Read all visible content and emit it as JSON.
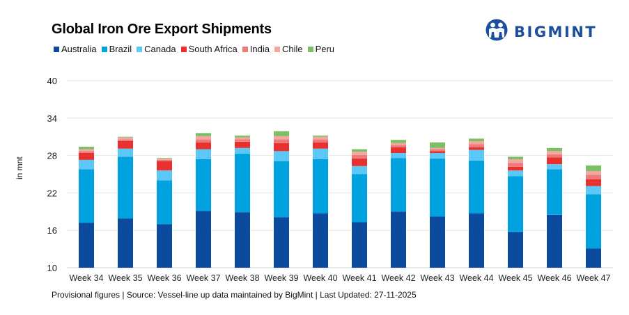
{
  "header": {
    "title": "Global Iron Ore Export Shipments",
    "logo_text": "BIGMINT",
    "logo_icon": "bigmint-people-icon",
    "brand_color": "#1c4f9c"
  },
  "footer": {
    "note": "Provisional figures | Source: Vessel-line up data maintained by BigMint | Last Updated: 27-11-2025"
  },
  "chart_data": {
    "type": "bar",
    "stacked": true,
    "title": "Global Iron Ore Export Shipments",
    "xlabel": "",
    "ylabel": "in mnt",
    "ylim": [
      10,
      40
    ],
    "yticks": [
      10,
      16,
      22,
      28,
      34,
      40
    ],
    "grid": true,
    "legend_position": "top-left",
    "categories": [
      "Week 34",
      "Week 35",
      "Week 36",
      "Week 37",
      "Week 38",
      "Week 39",
      "Week 40",
      "Week 41",
      "Week 42",
      "Week 43",
      "Week 44",
      "Week 45",
      "Week 46",
      "Week 47"
    ],
    "series": [
      {
        "name": "Australia",
        "color": "#0b4a9c",
        "values": [
          17.2,
          17.9,
          17.0,
          19.1,
          18.9,
          18.1,
          18.7,
          17.3,
          19.0,
          18.2,
          18.7,
          15.7,
          18.5,
          13.1
        ]
      },
      {
        "name": "Brazil",
        "color": "#00a3e0",
        "values": [
          8.6,
          9.9,
          7.0,
          8.3,
          9.4,
          9.0,
          8.7,
          7.7,
          8.6,
          9.3,
          8.5,
          9.0,
          7.3,
          8.7
        ]
      },
      {
        "name": "Canada",
        "color": "#5bc8f5",
        "values": [
          1.5,
          1.3,
          1.6,
          1.6,
          0.9,
          1.6,
          1.7,
          1.3,
          0.8,
          0.9,
          1.7,
          0.9,
          0.8,
          1.3
        ]
      },
      {
        "name": "South Africa",
        "color": "#e8312f",
        "values": [
          1.1,
          1.2,
          1.5,
          1.1,
          1.0,
          1.3,
          1.0,
          1.2,
          0.9,
          0.3,
          0.4,
          0.6,
          1.1,
          1.1
        ]
      },
      {
        "name": "India",
        "color": "#f07a7a",
        "values": [
          0.3,
          0.3,
          0.2,
          0.5,
          0.4,
          0.6,
          0.5,
          0.6,
          0.4,
          0.3,
          0.5,
          0.6,
          0.5,
          0.7
        ]
      },
      {
        "name": "Chile",
        "color": "#f4a6a0",
        "values": [
          0.3,
          0.3,
          0.2,
          0.5,
          0.3,
          0.5,
          0.4,
          0.5,
          0.3,
          0.2,
          0.5,
          0.6,
          0.5,
          0.6
        ]
      },
      {
        "name": "Peru",
        "color": "#7cc063",
        "values": [
          0.4,
          0.1,
          0.1,
          0.5,
          0.3,
          0.8,
          0.2,
          0.4,
          0.5,
          0.9,
          0.4,
          0.4,
          0.5,
          0.9
        ]
      }
    ]
  }
}
